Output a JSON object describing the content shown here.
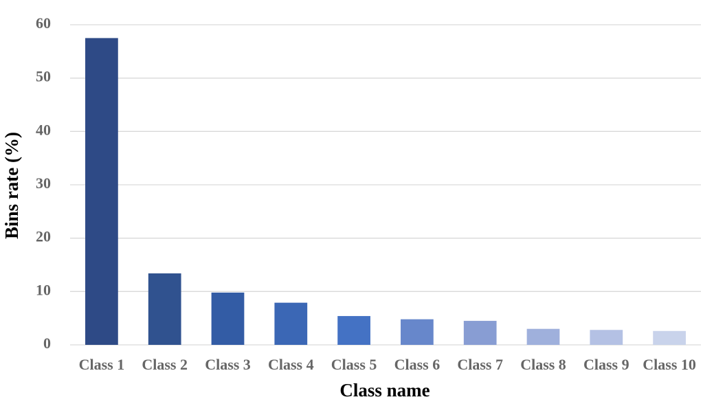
{
  "chart_data": {
    "type": "bar",
    "categories": [
      "Class 1",
      "Class 2",
      "Class 3",
      "Class 4",
      "Class 5",
      "Class 6",
      "Class 7",
      "Class 8",
      "Class 9",
      "Class 10"
    ],
    "values": [
      57.5,
      13.4,
      9.8,
      7.9,
      5.4,
      4.8,
      4.5,
      3.0,
      2.8,
      2.6
    ],
    "colors": [
      "#2e4a86",
      "#30528f",
      "#335ca5",
      "#3b67b5",
      "#4472c4",
      "#6787cb",
      "#889dd3",
      "#9fb0dc",
      "#b4c1e4",
      "#c9d3eb"
    ],
    "x_label": "Class name",
    "y_label": "Bins rate (%)",
    "ylim": [
      0,
      60
    ],
    "yticks": [
      0,
      10,
      20,
      30,
      40,
      50,
      60
    ],
    "grid": true
  }
}
